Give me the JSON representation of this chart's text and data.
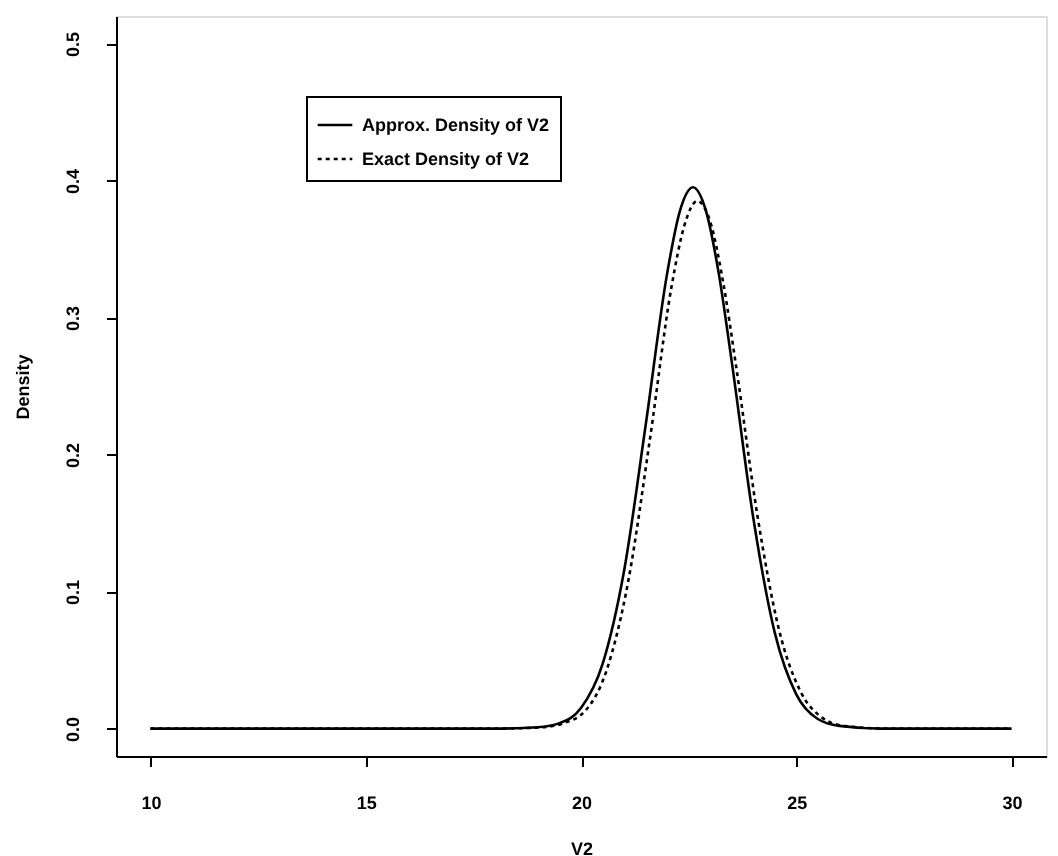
{
  "chart_data": {
    "type": "line",
    "xlabel": "V2",
    "ylabel": "Density",
    "xlim": [
      9.2,
      30.8
    ],
    "ylim": [
      -0.02,
      0.52
    ],
    "xticks": [
      10,
      15,
      20,
      25,
      30
    ],
    "yticks": [
      {
        "value": 0,
        "label": "0.0"
      },
      {
        "value": 0.1,
        "label": "0.1"
      },
      {
        "value": 0.2,
        "label": "0.2"
      },
      {
        "value": 0.3,
        "label": "0.3"
      },
      {
        "value": 0.4,
        "label": "0.4"
      },
      {
        "value": 0.5,
        "label": "0.5"
      }
    ],
    "grid": false,
    "legend": "top left",
    "marker": "none",
    "series": [
      {
        "name": "Approx. Density of V2",
        "color": "#000000",
        "line_style": "solid",
        "x": [
          10,
          18,
          19,
          19.5,
          20,
          20.5,
          21,
          21.5,
          22,
          22.3,
          22.6,
          22.9,
          23.2,
          23.5,
          24,
          24.5,
          25,
          25.5,
          26,
          27,
          30
        ],
        "values": [
          0,
          0,
          0.001,
          0.004,
          0.015,
          0.047,
          0.115,
          0.221,
          0.332,
          0.378,
          0.395,
          0.378,
          0.332,
          0.268,
          0.154,
          0.07,
          0.025,
          0.007,
          0.002,
          0,
          0
        ]
      },
      {
        "name": "Exact Density of V2",
        "color": "#000000",
        "line_style": "dotted",
        "x": [
          10,
          18.1,
          19.1,
          19.6,
          20.1,
          20.6,
          21.1,
          21.6,
          22.1,
          22.4,
          22.7,
          23,
          23.3,
          23.6,
          24.1,
          24.6,
          25.1,
          25.6,
          26.1,
          27.1,
          30
        ],
        "values": [
          0,
          0,
          0.001,
          0.004,
          0.013,
          0.043,
          0.108,
          0.211,
          0.322,
          0.367,
          0.385,
          0.37,
          0.326,
          0.265,
          0.155,
          0.072,
          0.027,
          0.008,
          0.002,
          0,
          0
        ]
      }
    ]
  }
}
